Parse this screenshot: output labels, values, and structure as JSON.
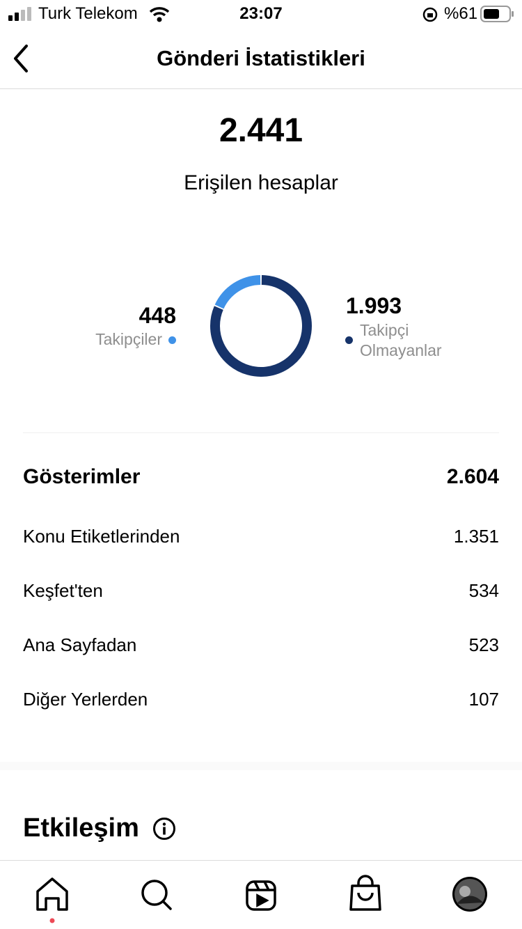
{
  "status_bar": {
    "carrier": "Turk Telekom",
    "time": "23:07",
    "battery": "%61"
  },
  "header": {
    "title": "Gönderi İstatistikleri"
  },
  "reach": {
    "total": "2.441",
    "label": "Erişilen hesaplar"
  },
  "donut": {
    "values": [
      448,
      1993
    ],
    "value_labels": [
      "448",
      "1.993"
    ],
    "names": [
      "Takipçiler",
      "Takipçi Olmayanlar"
    ],
    "colors": [
      "#3f92e8",
      "#16336a"
    ]
  },
  "impressions": {
    "title": "Gösterimler",
    "total": "2.604",
    "rows": [
      [
        "Konu Etiketlerinden",
        "1.351"
      ],
      [
        "Keşfet'ten",
        "534"
      ],
      [
        "Ana Sayfadan",
        "523"
      ],
      [
        "Diğer Yerlerden",
        "107"
      ]
    ]
  },
  "engagement": {
    "title": "Etkileşim"
  }
}
